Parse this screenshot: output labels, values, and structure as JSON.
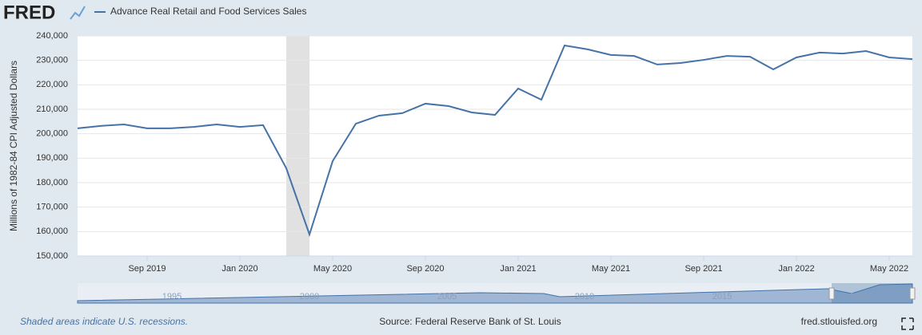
{
  "logo": "FRED",
  "chart_data": {
    "type": "line",
    "ylabel": "Millions of 1982-84 CPI Adjusted Dollars",
    "x": [
      "2019-06",
      "2019-07",
      "2019-08",
      "2019-09",
      "2019-10",
      "2019-11",
      "2019-12",
      "2020-01",
      "2020-02",
      "2020-03",
      "2020-04",
      "2020-05",
      "2020-06",
      "2020-07",
      "2020-08",
      "2020-09",
      "2020-10",
      "2020-11",
      "2020-12",
      "2021-01",
      "2021-02",
      "2021-03",
      "2021-04",
      "2021-05",
      "2021-06",
      "2021-07",
      "2021-08",
      "2021-09",
      "2021-10",
      "2021-11",
      "2021-12",
      "2022-01",
      "2022-02",
      "2022-03",
      "2022-04",
      "2022-05",
      "2022-06"
    ],
    "series": [
      {
        "name": "Advance Real Retail and Food Services Sales",
        "color": "#4572a7",
        "values": [
          202200,
          203200,
          203800,
          202200,
          202200,
          202800,
          203800,
          202800,
          203500,
          185900,
          158800,
          188800,
          204100,
          207400,
          208400,
          212300,
          211300,
          208700,
          207700,
          218500,
          213900,
          236100,
          234500,
          232200,
          231800,
          228300,
          228900,
          230200,
          231800,
          231500,
          226300,
          231200,
          233200,
          232800,
          233800,
          231200,
          230500
        ]
      }
    ],
    "recessions": [
      {
        "start": "2020-03",
        "end": "2020-04"
      }
    ],
    "ylim": [
      150000,
      240000
    ],
    "yticks": [
      {
        "value": 150000,
        "label": "150,000"
      },
      {
        "value": 160000,
        "label": "160,000"
      },
      {
        "value": 170000,
        "label": "170,000"
      },
      {
        "value": 180000,
        "label": "180,000"
      },
      {
        "value": 190000,
        "label": "190,000"
      },
      {
        "value": 200000,
        "label": "200,000"
      },
      {
        "value": 210000,
        "label": "210,000"
      },
      {
        "value": 220000,
        "label": "220,000"
      },
      {
        "value": 230000,
        "label": "230,000"
      },
      {
        "value": 240000,
        "label": "240,000"
      }
    ],
    "xticks": [
      {
        "value": "2019-09",
        "label": "Sep 2019"
      },
      {
        "value": "2020-01",
        "label": "Jan 2020"
      },
      {
        "value": "2020-05",
        "label": "May 2020"
      },
      {
        "value": "2020-09",
        "label": "Sep 2020"
      },
      {
        "value": "2021-01",
        "label": "Jan 2021"
      },
      {
        "value": "2021-05",
        "label": "May 2021"
      },
      {
        "value": "2021-09",
        "label": "Sep 2021"
      },
      {
        "value": "2022-01",
        "label": "Jan 2022"
      },
      {
        "value": "2022-05",
        "label": "May 2022"
      }
    ],
    "grid": true
  },
  "navigator": {
    "labels": [
      "1995",
      "2000",
      "2005",
      "2010",
      "2015",
      "2020"
    ]
  },
  "footer": {
    "note": "Shaded areas indicate U.S. recessions.",
    "source": "Source: Federal Reserve Bank of St. Louis",
    "site": "fred.stlouisfed.org"
  }
}
